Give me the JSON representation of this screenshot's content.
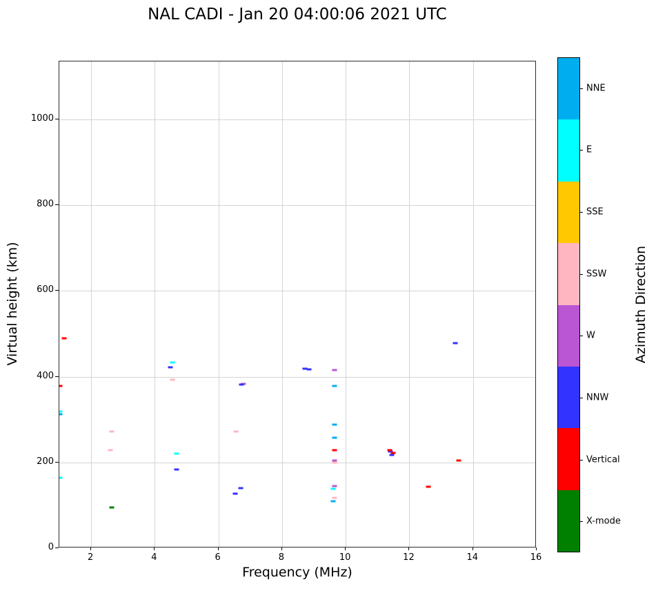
{
  "chart_data": {
    "type": "scatter",
    "title": "NAL CADI - Jan 20 04:00:06 2021 UTC",
    "xlabel": "Frequency (MHz)",
    "ylabel": "Virtual height (km)",
    "xlim": [
      1,
      16
    ],
    "ylim": [
      0,
      1135
    ],
    "xticks": [
      2,
      4,
      6,
      8,
      10,
      12,
      14,
      16
    ],
    "yticks": [
      0,
      200,
      400,
      600,
      800,
      1000
    ],
    "grid": true,
    "marker": "short horizontal dash",
    "legend": {
      "label": "Azimuth Direction",
      "position": "right-colorbar",
      "entries": [
        {
          "label": "NNE",
          "color": "#00AEEF"
        },
        {
          "label": "E",
          "color": "#00FFFF"
        },
        {
          "label": "SSE",
          "color": "#FFC800"
        },
        {
          "label": "SSW",
          "color": "#FFB6C1"
        },
        {
          "label": "W",
          "color": "#BA55D3"
        },
        {
          "label": "NNW",
          "color": "#3333FF"
        },
        {
          "label": "Vertical",
          "color": "#FF0000"
        },
        {
          "label": "X-mode",
          "color": "#008000"
        }
      ]
    },
    "series": [
      {
        "name": "NNE",
        "color": "#00AEEF",
        "points": [
          [
            1.02,
            312
          ],
          [
            9.65,
            378
          ],
          [
            9.65,
            288
          ],
          [
            9.65,
            258
          ],
          [
            9.6,
            110
          ]
        ]
      },
      {
        "name": "E",
        "color": "#00FFFF",
        "points": [
          [
            1.02,
            318
          ],
          [
            1.02,
            165
          ],
          [
            4.55,
            433
          ],
          [
            4.68,
            220
          ],
          [
            9.6,
            138
          ]
        ]
      },
      {
        "name": "SSE",
        "color": "#FFC800",
        "points": []
      },
      {
        "name": "SSW",
        "color": "#FFB6C1",
        "points": [
          [
            2.65,
            272
          ],
          [
            2.6,
            228
          ],
          [
            4.55,
            393
          ],
          [
            6.55,
            272
          ],
          [
            9.65,
            200
          ],
          [
            9.65,
            118
          ]
        ]
      },
      {
        "name": "W",
        "color": "#BA55D3",
        "points": [
          [
            6.78,
            383
          ],
          [
            9.65,
            415
          ],
          [
            9.65,
            205
          ],
          [
            9.65,
            145
          ]
        ]
      },
      {
        "name": "NNW",
        "color": "#3333FF",
        "points": [
          [
            4.5,
            422
          ],
          [
            4.68,
            183
          ],
          [
            6.72,
            382
          ],
          [
            6.52,
            127
          ],
          [
            6.7,
            140
          ],
          [
            8.72,
            418
          ],
          [
            8.85,
            417
          ],
          [
            11.4,
            225
          ],
          [
            11.45,
            218
          ],
          [
            13.45,
            478
          ]
        ]
      },
      {
        "name": "Vertical",
        "color": "#FF0000",
        "points": [
          [
            1.03,
            378
          ],
          [
            1.15,
            490
          ],
          [
            9.65,
            228
          ],
          [
            11.38,
            228
          ],
          [
            11.5,
            222
          ],
          [
            12.6,
            143
          ],
          [
            13.55,
            205
          ]
        ]
      },
      {
        "name": "X-mode",
        "color": "#008000",
        "points": [
          [
            2.65,
            95
          ]
        ]
      }
    ]
  }
}
